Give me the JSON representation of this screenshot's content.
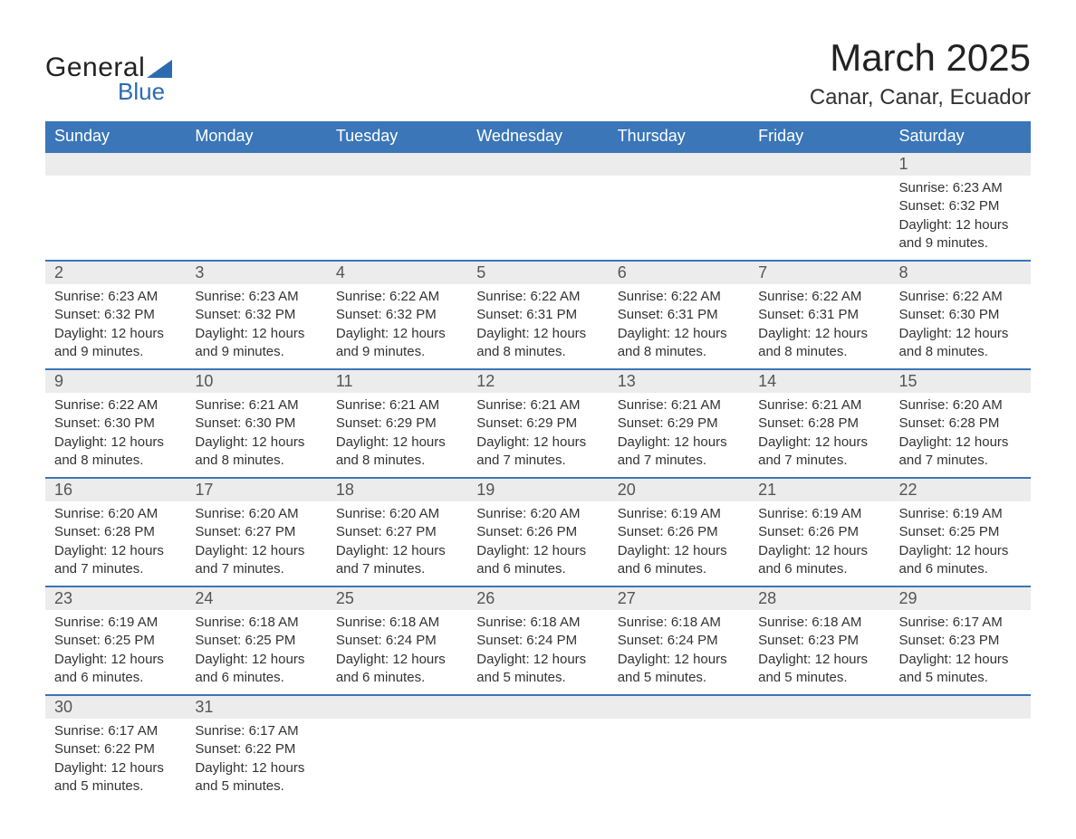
{
  "brand": {
    "line1": "General",
    "line2": "Blue"
  },
  "title": "March 2025",
  "location": "Canar, Canar, Ecuador",
  "colors": {
    "header_bg": "#3a76b8",
    "header_fg": "#ffffff",
    "daynum_bg": "#ececec",
    "border": "#3a76b8",
    "text": "#333333",
    "brand_blue": "#2d6bb0"
  },
  "fonts": {
    "title_size_pt": 42,
    "location_size_pt": 24,
    "header_size_pt": 18,
    "daynum_size_pt": 18,
    "body_size_pt": 15
  },
  "day_headers": [
    "Sunday",
    "Monday",
    "Tuesday",
    "Wednesday",
    "Thursday",
    "Friday",
    "Saturday"
  ],
  "weeks": [
    [
      null,
      null,
      null,
      null,
      null,
      null,
      {
        "n": "1",
        "sr": "Sunrise: 6:23 AM",
        "ss": "Sunset: 6:32 PM",
        "d1": "Daylight: 12 hours",
        "d2": "and 9 minutes."
      }
    ],
    [
      {
        "n": "2",
        "sr": "Sunrise: 6:23 AM",
        "ss": "Sunset: 6:32 PM",
        "d1": "Daylight: 12 hours",
        "d2": "and 9 minutes."
      },
      {
        "n": "3",
        "sr": "Sunrise: 6:23 AM",
        "ss": "Sunset: 6:32 PM",
        "d1": "Daylight: 12 hours",
        "d2": "and 9 minutes."
      },
      {
        "n": "4",
        "sr": "Sunrise: 6:22 AM",
        "ss": "Sunset: 6:32 PM",
        "d1": "Daylight: 12 hours",
        "d2": "and 9 minutes."
      },
      {
        "n": "5",
        "sr": "Sunrise: 6:22 AM",
        "ss": "Sunset: 6:31 PM",
        "d1": "Daylight: 12 hours",
        "d2": "and 8 minutes."
      },
      {
        "n": "6",
        "sr": "Sunrise: 6:22 AM",
        "ss": "Sunset: 6:31 PM",
        "d1": "Daylight: 12 hours",
        "d2": "and 8 minutes."
      },
      {
        "n": "7",
        "sr": "Sunrise: 6:22 AM",
        "ss": "Sunset: 6:31 PM",
        "d1": "Daylight: 12 hours",
        "d2": "and 8 minutes."
      },
      {
        "n": "8",
        "sr": "Sunrise: 6:22 AM",
        "ss": "Sunset: 6:30 PM",
        "d1": "Daylight: 12 hours",
        "d2": "and 8 minutes."
      }
    ],
    [
      {
        "n": "9",
        "sr": "Sunrise: 6:22 AM",
        "ss": "Sunset: 6:30 PM",
        "d1": "Daylight: 12 hours",
        "d2": "and 8 minutes."
      },
      {
        "n": "10",
        "sr": "Sunrise: 6:21 AM",
        "ss": "Sunset: 6:30 PM",
        "d1": "Daylight: 12 hours",
        "d2": "and 8 minutes."
      },
      {
        "n": "11",
        "sr": "Sunrise: 6:21 AM",
        "ss": "Sunset: 6:29 PM",
        "d1": "Daylight: 12 hours",
        "d2": "and 8 minutes."
      },
      {
        "n": "12",
        "sr": "Sunrise: 6:21 AM",
        "ss": "Sunset: 6:29 PM",
        "d1": "Daylight: 12 hours",
        "d2": "and 7 minutes."
      },
      {
        "n": "13",
        "sr": "Sunrise: 6:21 AM",
        "ss": "Sunset: 6:29 PM",
        "d1": "Daylight: 12 hours",
        "d2": "and 7 minutes."
      },
      {
        "n": "14",
        "sr": "Sunrise: 6:21 AM",
        "ss": "Sunset: 6:28 PM",
        "d1": "Daylight: 12 hours",
        "d2": "and 7 minutes."
      },
      {
        "n": "15",
        "sr": "Sunrise: 6:20 AM",
        "ss": "Sunset: 6:28 PM",
        "d1": "Daylight: 12 hours",
        "d2": "and 7 minutes."
      }
    ],
    [
      {
        "n": "16",
        "sr": "Sunrise: 6:20 AM",
        "ss": "Sunset: 6:28 PM",
        "d1": "Daylight: 12 hours",
        "d2": "and 7 minutes."
      },
      {
        "n": "17",
        "sr": "Sunrise: 6:20 AM",
        "ss": "Sunset: 6:27 PM",
        "d1": "Daylight: 12 hours",
        "d2": "and 7 minutes."
      },
      {
        "n": "18",
        "sr": "Sunrise: 6:20 AM",
        "ss": "Sunset: 6:27 PM",
        "d1": "Daylight: 12 hours",
        "d2": "and 7 minutes."
      },
      {
        "n": "19",
        "sr": "Sunrise: 6:20 AM",
        "ss": "Sunset: 6:26 PM",
        "d1": "Daylight: 12 hours",
        "d2": "and 6 minutes."
      },
      {
        "n": "20",
        "sr": "Sunrise: 6:19 AM",
        "ss": "Sunset: 6:26 PM",
        "d1": "Daylight: 12 hours",
        "d2": "and 6 minutes."
      },
      {
        "n": "21",
        "sr": "Sunrise: 6:19 AM",
        "ss": "Sunset: 6:26 PM",
        "d1": "Daylight: 12 hours",
        "d2": "and 6 minutes."
      },
      {
        "n": "22",
        "sr": "Sunrise: 6:19 AM",
        "ss": "Sunset: 6:25 PM",
        "d1": "Daylight: 12 hours",
        "d2": "and 6 minutes."
      }
    ],
    [
      {
        "n": "23",
        "sr": "Sunrise: 6:19 AM",
        "ss": "Sunset: 6:25 PM",
        "d1": "Daylight: 12 hours",
        "d2": "and 6 minutes."
      },
      {
        "n": "24",
        "sr": "Sunrise: 6:18 AM",
        "ss": "Sunset: 6:25 PM",
        "d1": "Daylight: 12 hours",
        "d2": "and 6 minutes."
      },
      {
        "n": "25",
        "sr": "Sunrise: 6:18 AM",
        "ss": "Sunset: 6:24 PM",
        "d1": "Daylight: 12 hours",
        "d2": "and 6 minutes."
      },
      {
        "n": "26",
        "sr": "Sunrise: 6:18 AM",
        "ss": "Sunset: 6:24 PM",
        "d1": "Daylight: 12 hours",
        "d2": "and 5 minutes."
      },
      {
        "n": "27",
        "sr": "Sunrise: 6:18 AM",
        "ss": "Sunset: 6:24 PM",
        "d1": "Daylight: 12 hours",
        "d2": "and 5 minutes."
      },
      {
        "n": "28",
        "sr": "Sunrise: 6:18 AM",
        "ss": "Sunset: 6:23 PM",
        "d1": "Daylight: 12 hours",
        "d2": "and 5 minutes."
      },
      {
        "n": "29",
        "sr": "Sunrise: 6:17 AM",
        "ss": "Sunset: 6:23 PM",
        "d1": "Daylight: 12 hours",
        "d2": "and 5 minutes."
      }
    ],
    [
      {
        "n": "30",
        "sr": "Sunrise: 6:17 AM",
        "ss": "Sunset: 6:22 PM",
        "d1": "Daylight: 12 hours",
        "d2": "and 5 minutes."
      },
      {
        "n": "31",
        "sr": "Sunrise: 6:17 AM",
        "ss": "Sunset: 6:22 PM",
        "d1": "Daylight: 12 hours",
        "d2": "and 5 minutes."
      },
      null,
      null,
      null,
      null,
      null
    ]
  ]
}
